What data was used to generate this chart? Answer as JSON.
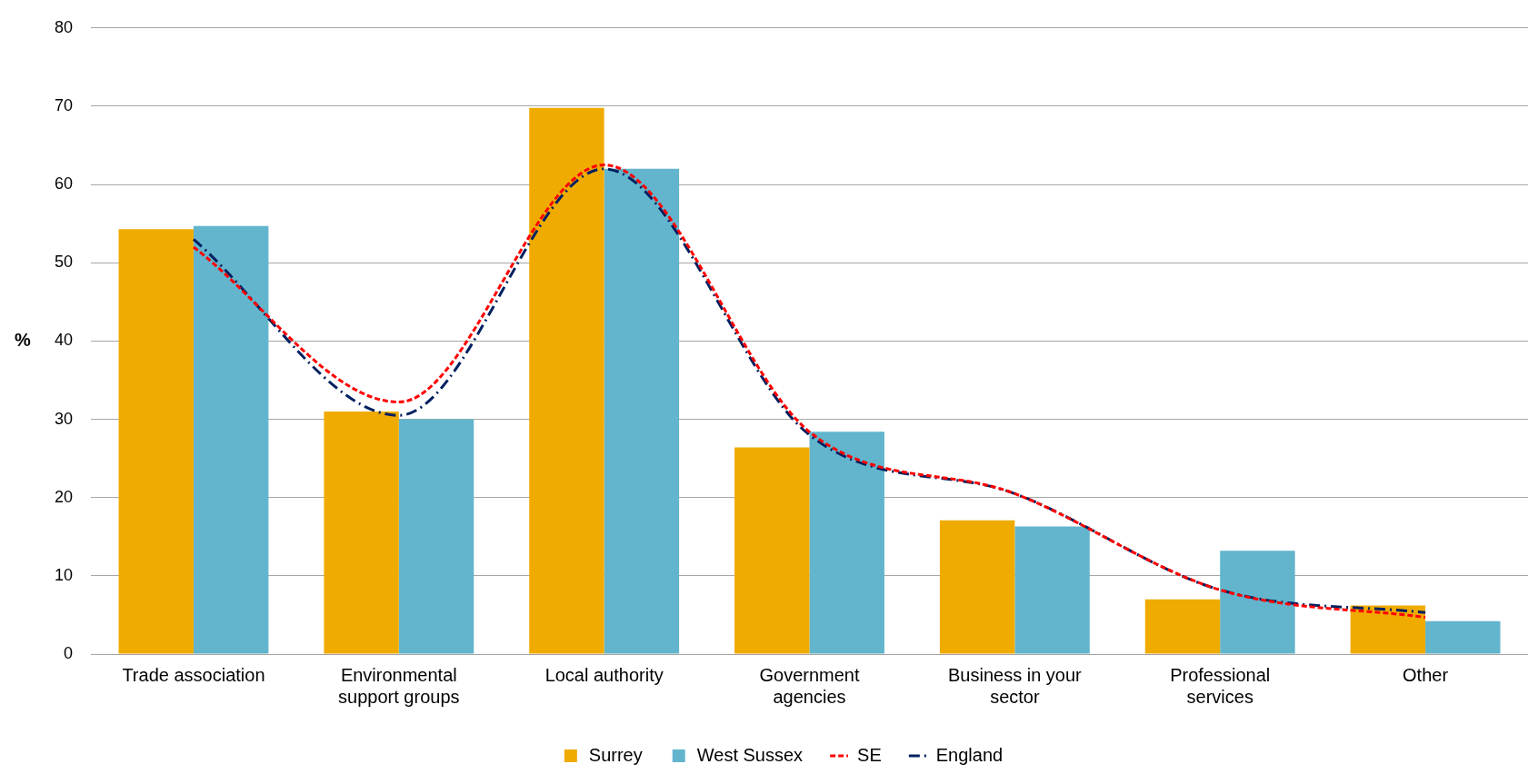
{
  "chart_data": {
    "type": "bar",
    "ylabel": "%",
    "categories": [
      "Trade association",
      "Environmental support groups",
      "Local authority",
      "Government agencies",
      "Business in your sector",
      "Professional services",
      "Other"
    ],
    "series": [
      {
        "name": "Surrey",
        "color": "#f0ab00",
        "values": [
          54.3,
          31,
          69.8,
          26.4,
          17.1,
          7,
          6.2
        ]
      },
      {
        "name": "West Sussex",
        "color": "#62b5cc",
        "values": [
          54.7,
          30,
          62,
          28.4,
          16.3,
          13.2,
          4.2
        ]
      },
      {
        "name": "SE",
        "type": "line",
        "color": "#ff0000",
        "line_style": "dashed",
        "values": [
          52,
          32.2,
          62.5,
          28.4,
          20.5,
          8.2,
          4.7
        ]
      },
      {
        "name": "England",
        "type": "line",
        "color": "#002060",
        "line_style": "dashdot",
        "values": [
          53,
          30.5,
          62,
          28,
          20.5,
          8.2,
          5.3
        ]
      }
    ],
    "ylim": [
      0,
      80
    ],
    "yticks": [
      0,
      10,
      20,
      30,
      40,
      50,
      60,
      70,
      80
    ],
    "grid": "y",
    "legend": "bottom",
    "marker": "none"
  }
}
